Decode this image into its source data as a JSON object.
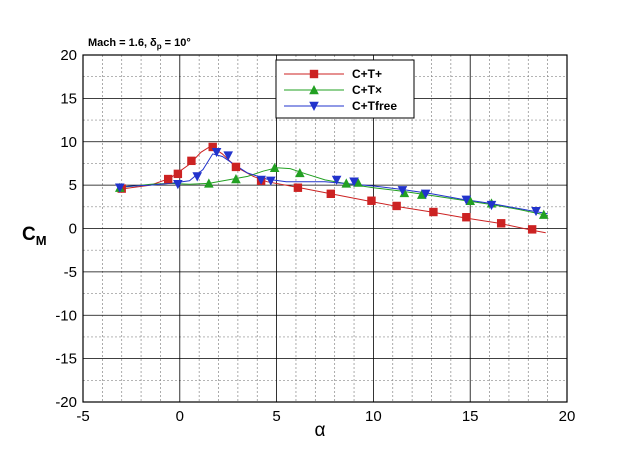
{
  "chart_data": {
    "type": "line",
    "annotation": {
      "prefix": "Mach = 1.6, δ",
      "subscript": "p",
      "suffix": " = 10°"
    },
    "xlabel": "α",
    "ylabel": {
      "main": "C",
      "subscript": "M"
    },
    "xlim": [
      -5,
      20
    ],
    "ylim": [
      -20,
      20
    ],
    "xticks": [
      -5,
      0,
      5,
      10,
      15,
      20
    ],
    "yticks": [
      -20,
      -15,
      -10,
      -5,
      0,
      5,
      10,
      15,
      20
    ],
    "grid": true,
    "legend_position": "top-center",
    "series": [
      {
        "name": "C+T+",
        "color": "#cc2222",
        "marker": "square",
        "line": [
          [
            -3.2,
            4.5
          ],
          [
            -1.5,
            5.0
          ],
          [
            -0.5,
            5.8
          ],
          [
            0.5,
            7.4
          ],
          [
            1.1,
            8.8
          ],
          [
            1.6,
            9.5
          ],
          [
            2.2,
            8.6
          ],
          [
            2.9,
            7.1
          ],
          [
            3.8,
            6.0
          ],
          [
            4.5,
            5.4
          ],
          [
            6.2,
            4.7
          ],
          [
            7.8,
            4.0
          ],
          [
            9.9,
            3.1
          ],
          [
            11.3,
            2.5
          ],
          [
            13.0,
            1.9
          ],
          [
            14.8,
            1.2
          ],
          [
            16.5,
            0.6
          ],
          [
            18.2,
            -0.2
          ],
          [
            18.9,
            -0.5
          ]
        ],
        "markers": [
          [
            -3.0,
            4.6
          ],
          [
            -0.6,
            5.7
          ],
          [
            -0.1,
            6.3
          ],
          [
            0.6,
            7.8
          ],
          [
            1.7,
            9.4
          ],
          [
            2.9,
            7.1
          ],
          [
            4.2,
            5.5
          ],
          [
            6.1,
            4.7
          ],
          [
            7.8,
            4.0
          ],
          [
            9.9,
            3.2
          ],
          [
            11.2,
            2.6
          ],
          [
            13.1,
            1.9
          ],
          [
            14.8,
            1.3
          ],
          [
            16.6,
            0.6
          ],
          [
            18.2,
            -0.1
          ]
        ]
      },
      {
        "name": "C+T×",
        "color": "#22a022",
        "marker": "triangle-up",
        "line": [
          [
            -3.2,
            4.7
          ],
          [
            -1.5,
            5.1
          ],
          [
            -0.5,
            5.2
          ],
          [
            0.5,
            5.1
          ],
          [
            1.5,
            5.2
          ],
          [
            2.5,
            5.6
          ],
          [
            3.5,
            6.0
          ],
          [
            4.3,
            6.6
          ],
          [
            5.0,
            7.0
          ],
          [
            5.7,
            6.9
          ],
          [
            6.5,
            6.3
          ],
          [
            7.5,
            5.6
          ],
          [
            8.5,
            5.2
          ],
          [
            10.0,
            4.7
          ],
          [
            11.5,
            4.3
          ],
          [
            13.0,
            3.8
          ],
          [
            14.5,
            3.3
          ],
          [
            16.0,
            2.8
          ],
          [
            17.5,
            2.2
          ],
          [
            19.0,
            1.5
          ]
        ],
        "markers": [
          [
            -3.1,
            4.7
          ],
          [
            1.5,
            5.2
          ],
          [
            2.9,
            5.7
          ],
          [
            4.9,
            7.0
          ],
          [
            6.2,
            6.4
          ],
          [
            8.6,
            5.2
          ],
          [
            9.2,
            5.3
          ],
          [
            11.6,
            4.1
          ],
          [
            12.5,
            3.9
          ],
          [
            15.0,
            3.2
          ],
          [
            16.1,
            2.9
          ],
          [
            18.8,
            1.6
          ]
        ]
      },
      {
        "name": "C+Tfree",
        "color": "#2233cc",
        "marker": "triangle-down",
        "line": [
          [
            -3.2,
            4.8
          ],
          [
            -1.5,
            5.0
          ],
          [
            -0.5,
            5.2
          ],
          [
            0.5,
            5.5
          ],
          [
            1.2,
            6.8
          ],
          [
            1.7,
            8.6
          ],
          [
            2.2,
            8.3
          ],
          [
            2.8,
            7.4
          ],
          [
            3.5,
            6.4
          ],
          [
            4.5,
            5.7
          ],
          [
            5.5,
            5.4
          ],
          [
            6.5,
            5.4
          ],
          [
            7.5,
            5.4
          ],
          [
            8.5,
            5.2
          ],
          [
            10.0,
            4.9
          ],
          [
            11.5,
            4.5
          ],
          [
            13.0,
            4.0
          ],
          [
            14.5,
            3.4
          ],
          [
            16.0,
            2.9
          ],
          [
            17.5,
            2.3
          ],
          [
            19.0,
            1.7
          ]
        ],
        "markers": [
          [
            -3.1,
            4.7
          ],
          [
            -0.1,
            5.1
          ],
          [
            0.9,
            6.0
          ],
          [
            1.9,
            8.8
          ],
          [
            2.5,
            8.4
          ],
          [
            4.2,
            5.6
          ],
          [
            4.7,
            5.5
          ],
          [
            8.1,
            5.6
          ],
          [
            9.0,
            5.4
          ],
          [
            11.5,
            4.4
          ],
          [
            12.7,
            4.0
          ],
          [
            14.8,
            3.3
          ],
          [
            16.1,
            2.7
          ],
          [
            18.4,
            2.0
          ]
        ]
      }
    ]
  }
}
